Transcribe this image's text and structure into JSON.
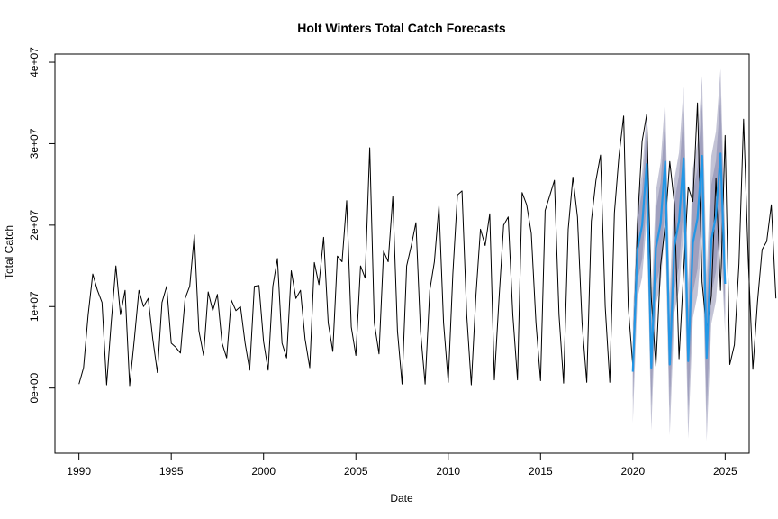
{
  "chart_data": {
    "type": "line",
    "title": "Holt Winters Total Catch Forecasts",
    "xlabel": "Date",
    "ylabel": "Total Catch",
    "xlim": [
      1988.7,
      2026.3
    ],
    "ylim": [
      -8000000,
      41000000
    ],
    "x_ticks": [
      1990,
      1995,
      2000,
      2005,
      2010,
      2015,
      2020,
      2025
    ],
    "x_tick_labels": [
      "1990",
      "1995",
      "2000",
      "2005",
      "2010",
      "2015",
      "2020",
      "2025"
    ],
    "y_ticks": [
      0,
      10000000,
      20000000,
      30000000,
      40000000
    ],
    "y_tick_labels": [
      "0e+00",
      "1e+07",
      "2e+07",
      "3e+07",
      "4e+07"
    ],
    "grid": false,
    "colors": {
      "observed": "#000000",
      "forecast": "#2297E6",
      "band_95": "#C3C3D5",
      "band_80": "#A0A0BE"
    },
    "series": [
      {
        "start": 1990.0,
        "frequency": 4,
        "values": [
          500000,
          2500000,
          9000000,
          14000000,
          12000000,
          10500000,
          400000,
          8000000,
          15000000,
          9000000,
          12000000,
          300000,
          6000000,
          12000000,
          10000000,
          11000000,
          6000000,
          1900000,
          10500000,
          12500000,
          5500000,
          5000000,
          4300000,
          11000000,
          12500000,
          18800000,
          7000000,
          4000000,
          11800000,
          9500000,
          11500000,
          5500000,
          3700000,
          10800000,
          9500000,
          10000000,
          5500000,
          2200000,
          12500000,
          12600000,
          5700000,
          2200000,
          12500000,
          15900000,
          5500000,
          3700000,
          14400000,
          11000000,
          12000000,
          6000000,
          2500000,
          15400000,
          12700000,
          18500000,
          8000000,
          4500000,
          16200000,
          15500000,
          23000000,
          7500000,
          4000000,
          15000000,
          13500000,
          29500000,
          8000000,
          4200000,
          16800000,
          15500000,
          23500000,
          7000000,
          500000,
          15000000,
          17500000,
          20300000,
          7000000,
          500000,
          12000000,
          15500000,
          22400000,
          8000000,
          700000,
          14000000,
          23700000,
          24200000,
          9000000,
          400000,
          11300000,
          19500000,
          17500000,
          21400000,
          1000000,
          11000000,
          20000000,
          21000000,
          9000000,
          1000000,
          24000000,
          22500000,
          19000000,
          8000000,
          900000,
          21800000,
          23600000,
          25500000,
          9000000,
          600000,
          19500000,
          25900000,
          21000000,
          8000000,
          700000,
          20500000,
          25500000,
          28600000,
          10000000,
          700000,
          21500000,
          28500000,
          33400000,
          10000000,
          2700000,
          20000000,
          30300000,
          33600000,
          11000000,
          2700000,
          15000000,
          20000000,
          27800000,
          22600000,
          3600000,
          14300000,
          24700000,
          22900000,
          35000000,
          13000000,
          7000000,
          11300000,
          25800000,
          12000000,
          31000000,
          2900000,
          5300000,
          15300000,
          33000000,
          15700000,
          2300000,
          10500000,
          17000000,
          18000000,
          22500000,
          11000000
        ]
      },
      {
        "start": 2020.0,
        "frequency": 4,
        "values": [
          2000000,
          17000000,
          20000000,
          27500000,
          2500000,
          17200000,
          20200000,
          27800000,
          2900000,
          17500000,
          20500000,
          28200000,
          3300000,
          17800000,
          20800000,
          28500000,
          3700000,
          18200000,
          21100000,
          28800000,
          12800000
        ],
        "lo80": [
          -1500000,
          13200000,
          15800000,
          23000000,
          -2200000,
          12500000,
          15200000,
          22600000,
          -2500000,
          12100000,
          14900000,
          22300000,
          -2800000,
          11700000,
          14600000,
          22000000,
          -3000000,
          11400000,
          14300000,
          21800000,
          8500000
        ],
        "hi80": [
          5500000,
          20800000,
          24200000,
          32000000,
          7200000,
          21900000,
          25200000,
          33000000,
          8300000,
          22900000,
          26100000,
          34100000,
          9400000,
          23900000,
          27000000,
          35000000,
          10400000,
          25000000,
          27900000,
          35800000,
          17100000
        ],
        "lo95": [
          -4300000,
          11000000,
          13600000,
          20500000,
          -5200000,
          10200000,
          12700000,
          19800000,
          -5800000,
          9300000,
          12100000,
          19200000,
          -6200000,
          8600000,
          11400000,
          18600000,
          -6500000,
          7900000,
          10700000,
          17900000,
          6700000
        ],
        "hi95": [
          8300000,
          23000000,
          26400000,
          34100000,
          10200000,
          24200000,
          27700000,
          35600000,
          11600000,
          25700000,
          28900000,
          37000000,
          12800000,
          27000000,
          30200000,
          38300000,
          13900000,
          28500000,
          31500000,
          39200000,
          18900000
        ]
      }
    ]
  }
}
